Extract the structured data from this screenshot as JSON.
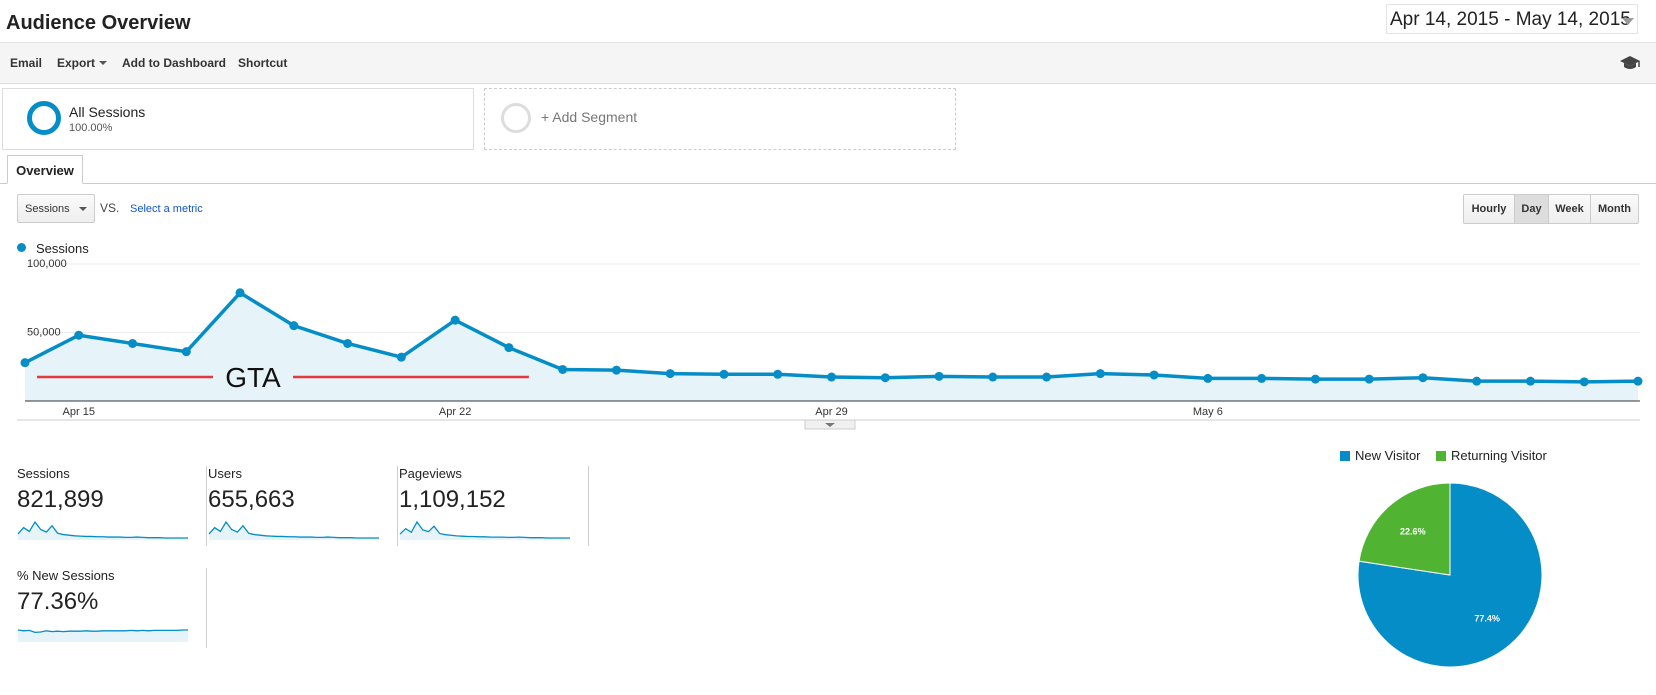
{
  "header": {
    "title": "Audience Overview",
    "date_range": "Apr 14, 2015 - May 14, 2015"
  },
  "toolbar": {
    "email": "Email",
    "export": "Export",
    "add_to_dashboard": "Add to Dashboard",
    "shortcut": "Shortcut",
    "help_icon": "graduation-cap-icon"
  },
  "segments": {
    "all": {
      "name": "All Sessions",
      "percent": "100.00%"
    },
    "add": {
      "label": "+ Add Segment"
    }
  },
  "tabs": {
    "overview": "Overview"
  },
  "controls": {
    "metric": "Sessions",
    "vs": "VS.",
    "select_metric": "Select a metric",
    "granularity": [
      "Hourly",
      "Day",
      "Week",
      "Month"
    ],
    "active_granularity": "Day"
  },
  "legend": {
    "series": "Sessions"
  },
  "annotation": {
    "label": "GTA"
  },
  "colors": {
    "primary": "#058dc7",
    "secondary": "#50b432",
    "annotation": "#e0393e",
    "area": "#e6f3f9"
  },
  "chart_data": [
    {
      "type": "area",
      "series": [
        {
          "name": "Sessions",
          "values": [
            28000,
            48000,
            42000,
            36000,
            79000,
            55000,
            42000,
            32000,
            59000,
            39000,
            23000,
            22500,
            20000,
            19500,
            19500,
            17500,
            17000,
            18000,
            17500,
            17500,
            20000,
            19000,
            16500,
            16500,
            16000,
            16000,
            17000,
            14500,
            14500,
            14000,
            14500
          ]
        }
      ],
      "x": [
        "Apr 14",
        "Apr 15",
        "Apr 16",
        "Apr 17",
        "Apr 18",
        "Apr 19",
        "Apr 20",
        "Apr 21",
        "Apr 22",
        "Apr 23",
        "Apr 24",
        "Apr 25",
        "Apr 26",
        "Apr 27",
        "Apr 28",
        "Apr 29",
        "Apr 30",
        "May 1",
        "May 2",
        "May 3",
        "May 4",
        "May 5",
        "May 6",
        "May 7",
        "May 8",
        "May 9",
        "May 10",
        "May 11",
        "May 12",
        "May 13",
        "May 14"
      ],
      "x_tick_labels": [
        "Apr 15",
        "Apr 22",
        "Apr 29",
        "May 6"
      ],
      "y_tick_labels": [
        "100,000",
        "50,000"
      ],
      "ylim": [
        0,
        100000
      ],
      "annotation_range": [
        "Apr 14",
        "Apr 23"
      ]
    },
    {
      "type": "pie",
      "categories": [
        "New Visitor",
        "Returning Visitor"
      ],
      "values": [
        77.4,
        22.6
      ],
      "data_labels": [
        "77.4%",
        "22.6%"
      ],
      "legend_position": "top"
    }
  ],
  "scorecards": [
    {
      "label": "Sessions",
      "value": "821,899",
      "spark": [
        22,
        42,
        30,
        60,
        36,
        28,
        48,
        24,
        20,
        18,
        16,
        15,
        14,
        14,
        13,
        13,
        12,
        12,
        12,
        11,
        11,
        12,
        11,
        10,
        10,
        10,
        9,
        9,
        9,
        9,
        9
      ]
    },
    {
      "label": "Users",
      "value": "655,663",
      "spark": [
        22,
        42,
        30,
        60,
        36,
        28,
        48,
        24,
        20,
        18,
        16,
        15,
        14,
        14,
        13,
        13,
        12,
        12,
        12,
        11,
        11,
        12,
        11,
        10,
        10,
        10,
        9,
        9,
        9,
        9,
        9
      ]
    },
    {
      "label": "Pageviews",
      "value": "1,109,152",
      "spark": [
        22,
        40,
        28,
        62,
        36,
        30,
        48,
        24,
        20,
        18,
        16,
        15,
        14,
        14,
        13,
        13,
        12,
        12,
        12,
        11,
        11,
        12,
        11,
        10,
        10,
        10,
        9,
        9,
        9,
        9,
        9
      ]
    },
    {
      "label": "% New Sessions",
      "value": "77.36%",
      "spark": [
        80,
        78,
        79,
        74,
        75,
        78,
        76,
        77,
        76,
        77,
        77,
        77,
        78,
        77,
        77,
        78,
        78,
        78,
        78,
        78,
        79,
        78,
        79,
        78,
        79,
        79,
        79,
        79,
        79,
        80,
        80
      ]
    }
  ]
}
